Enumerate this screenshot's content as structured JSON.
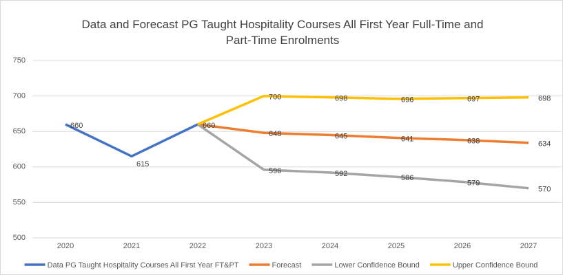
{
  "chart_data": {
    "type": "line",
    "title": "Data and Forecast PG Taught Hospitality Courses All First Year Full-Time and Part-Time Enrolments",
    "categories": [
      "2020",
      "2021",
      "2022",
      "2023",
      "2024",
      "2025",
      "2026",
      "2027"
    ],
    "series": [
      {
        "name": "Data PG Taught Hospitality Courses All First Year FT&PT",
        "color": "#4472c4",
        "values": [
          660,
          615,
          660,
          null,
          null,
          null,
          null,
          null
        ]
      },
      {
        "name": "Forecast",
        "color": "#ed7d31",
        "values": [
          null,
          null,
          660,
          648,
          645,
          641,
          638,
          634
        ]
      },
      {
        "name": "Lower Confidence Bound",
        "color": "#a5a5a5",
        "values": [
          null,
          null,
          660,
          596,
          592,
          586,
          579,
          570
        ]
      },
      {
        "name": "Upper Confidence Bound",
        "color": "#ffc000",
        "values": [
          null,
          null,
          660,
          700,
          698,
          696,
          697,
          698
        ]
      }
    ],
    "ylim": [
      500,
      750
    ],
    "yticks": [
      500,
      550,
      600,
      650,
      700,
      750
    ],
    "grid": true,
    "legend": "bottom"
  }
}
